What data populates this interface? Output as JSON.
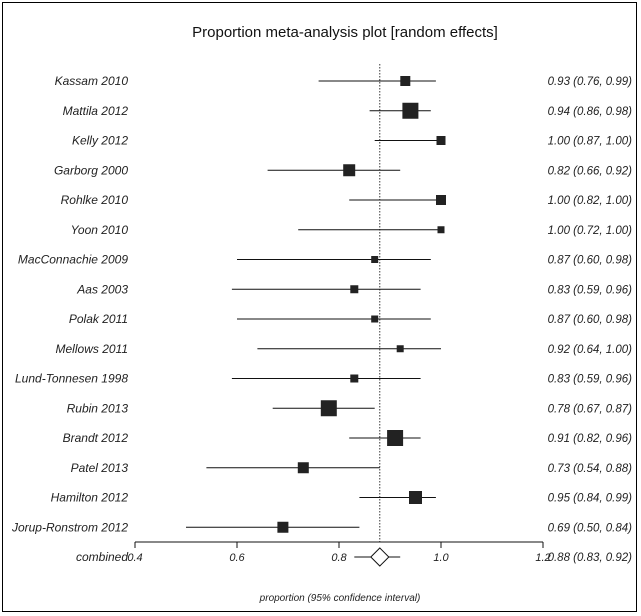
{
  "chart_data": {
    "type": "forest",
    "title": "Proportion meta-analysis plot [random effects]",
    "xlabel": "proportion (95% confidence interval)",
    "xlim": [
      0.4,
      1.2
    ],
    "xticks": [
      "0.4",
      "0.6",
      "0.8",
      "1.0",
      "1.2"
    ],
    "pooled_line": 0.88,
    "studies": [
      {
        "name": "Kassam 2010",
        "p": 0.93,
        "lo": 0.76,
        "hi": 0.99,
        "weight": 1.0,
        "label": "0.93 (0.76, 0.99)"
      },
      {
        "name": "Mattila 2012",
        "p": 0.94,
        "lo": 0.86,
        "hi": 0.98,
        "weight": 1.6,
        "label": "0.94 (0.86, 0.98)"
      },
      {
        "name": "Kelly 2012",
        "p": 1.0,
        "lo": 0.87,
        "hi": 1.0,
        "weight": 0.9,
        "label": "1.00 (0.87, 1.00)"
      },
      {
        "name": "Garborg 2000",
        "p": 0.82,
        "lo": 0.66,
        "hi": 0.92,
        "weight": 1.2,
        "label": "0.82 (0.66, 0.92)"
      },
      {
        "name": "Rohlke 2010",
        "p": 1.0,
        "lo": 0.82,
        "hi": 1.0,
        "weight": 1.0,
        "label": "1.00 (0.82, 1.00)"
      },
      {
        "name": "Yoon 2010",
        "p": 1.0,
        "lo": 0.72,
        "hi": 1.0,
        "weight": 0.7,
        "label": "1.00 (0.72, 1.00)"
      },
      {
        "name": "MacConnachie 2009",
        "p": 0.87,
        "lo": 0.6,
        "hi": 0.98,
        "weight": 0.7,
        "label": "0.87 (0.60, 0.98)"
      },
      {
        "name": "Aas 2003",
        "p": 0.83,
        "lo": 0.59,
        "hi": 0.96,
        "weight": 0.8,
        "label": "0.83 (0.59, 0.96)"
      },
      {
        "name": "Polak 2011",
        "p": 0.87,
        "lo": 0.6,
        "hi": 0.98,
        "weight": 0.7,
        "label": "0.87 (0.60, 0.98)"
      },
      {
        "name": "Mellows 2011",
        "p": 0.92,
        "lo": 0.64,
        "hi": 1.0,
        "weight": 0.7,
        "label": "0.92 (0.64, 1.00)"
      },
      {
        "name": "Lund-Tonnesen 1998",
        "p": 0.83,
        "lo": 0.59,
        "hi": 0.96,
        "weight": 0.8,
        "label": "0.83 (0.59, 0.96)"
      },
      {
        "name": "Rubin 2013",
        "p": 0.78,
        "lo": 0.67,
        "hi": 0.87,
        "weight": 1.6,
        "label": "0.78 (0.67, 0.87)"
      },
      {
        "name": "Brandt 2012",
        "p": 0.91,
        "lo": 0.82,
        "hi": 0.96,
        "weight": 1.6,
        "label": "0.91 (0.82, 0.96)"
      },
      {
        "name": "Patel 2013",
        "p": 0.73,
        "lo": 0.54,
        "hi": 0.88,
        "weight": 1.1,
        "label": "0.73 (0.54, 0.88)"
      },
      {
        "name": "Hamilton 2012",
        "p": 0.95,
        "lo": 0.84,
        "hi": 0.99,
        "weight": 1.3,
        "label": "0.95 (0.84, 0.99)"
      },
      {
        "name": "Jorup-Ronstrom 2012",
        "p": 0.69,
        "lo": 0.5,
        "hi": 0.84,
        "weight": 1.1,
        "label": "0.69 (0.50, 0.84)"
      }
    ],
    "combined": {
      "name": "combined",
      "p": 0.88,
      "lo": 0.83,
      "hi": 0.92,
      "label": "0.88 (0.83, 0.92)"
    }
  }
}
